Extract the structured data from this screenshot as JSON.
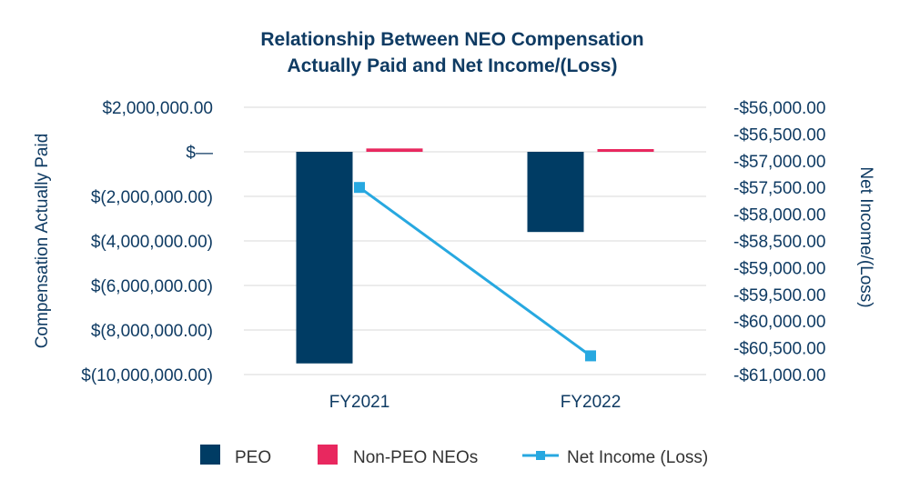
{
  "chart_data": {
    "type": "bar",
    "title": [
      "Relationship Between NEO Compensation",
      "Actually Paid and Net Income/(Loss)"
    ],
    "categories": [
      "FY2021",
      "FY2022"
    ],
    "ylabel": "Compensation Actually Paid",
    "y2label": "Net Income/(Loss)",
    "ylim": [
      -10000000,
      2000000
    ],
    "y2lim": [
      -61000,
      -56000
    ],
    "yticks": [
      {
        "value": 2000000,
        "label": "$2,000,000.00"
      },
      {
        "value": 0,
        "label": "$—"
      },
      {
        "value": -2000000,
        "label": "$(2,000,000.00)"
      },
      {
        "value": -4000000,
        "label": "$(4,000,000.00)"
      },
      {
        "value": -6000000,
        "label": "$(6,000,000.00)"
      },
      {
        "value": -8000000,
        "label": "$(8,000,000.00)"
      },
      {
        "value": -10000000,
        "label": "$(10,000,000.00)"
      }
    ],
    "y2ticks": [
      {
        "value": -56000,
        "label": "-$56,000.00"
      },
      {
        "value": -56500,
        "label": "-$56,500.00"
      },
      {
        "value": -57000,
        "label": "-$57,000.00"
      },
      {
        "value": -57500,
        "label": "-$57,500.00"
      },
      {
        "value": -58000,
        "label": "-$58,000.00"
      },
      {
        "value": -58500,
        "label": "-$58,500.00"
      },
      {
        "value": -59000,
        "label": "-$59,000.00"
      },
      {
        "value": -59500,
        "label": "-$59,500.00"
      },
      {
        "value": -60000,
        "label": "-$60,000.00"
      },
      {
        "value": -60500,
        "label": "-$60,500.00"
      },
      {
        "value": -61000,
        "label": "-$61,000.00"
      }
    ],
    "bar_series": [
      {
        "name": "PEO",
        "color": "#003c64",
        "values": [
          -9500000,
          -3600000
        ]
      },
      {
        "name": "Non-PEO NEOs",
        "color": "#e8285f",
        "values": [
          150000,
          -50000
        ]
      }
    ],
    "line_series": {
      "name": "Net Income (Loss)",
      "color": "#27a8e0",
      "axis": "right",
      "values": [
        -57500,
        -60650
      ]
    },
    "legend": {
      "position": "bottom",
      "items": [
        "PEO",
        "Non-PEO NEOs",
        "Net Income (Loss)"
      ]
    }
  }
}
